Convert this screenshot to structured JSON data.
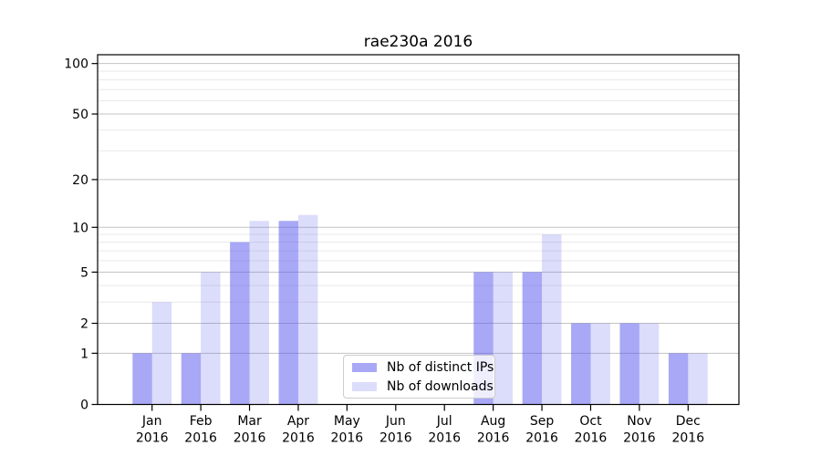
{
  "chart_data": {
    "type": "bar",
    "title": "rae230a 2016",
    "categories": [
      "Jan 2016",
      "Feb 2016",
      "Mar 2016",
      "Apr 2016",
      "May 2016",
      "Jun 2016",
      "Jul 2016",
      "Aug 2016",
      "Sep 2016",
      "Oct 2016",
      "Nov 2016",
      "Dec 2016"
    ],
    "series": [
      {
        "name": "Nb of distinct IPs",
        "values": [
          1,
          1,
          8,
          11,
          0,
          0,
          0,
          5,
          5,
          2,
          2,
          1
        ],
        "alpha": 0.5
      },
      {
        "name": "Nb of downloads",
        "values": [
          3,
          5,
          11,
          12,
          0,
          0,
          0,
          5,
          9,
          2,
          2,
          1
        ],
        "alpha": 0.2
      }
    ],
    "yscale": "log1p",
    "ylim": [
      0,
      113
    ],
    "ytick_labels": [
      "0",
      "1",
      "2",
      "5",
      "10",
      "20",
      "50",
      "100"
    ],
    "yticks": [
      0,
      1,
      2,
      5,
      10,
      20,
      50,
      100
    ],
    "minor_ticks": [
      3,
      4,
      6,
      7,
      8,
      9,
      30,
      40,
      60,
      70,
      80,
      90
    ],
    "grid": "on",
    "legend_position": "inside-bottom-center",
    "colors": {
      "bar_base": "#5252ed",
      "grid_major": "#c3c3c3",
      "grid_minor": "#e9e9e9",
      "axis": "#000000",
      "text": "#000000"
    }
  }
}
